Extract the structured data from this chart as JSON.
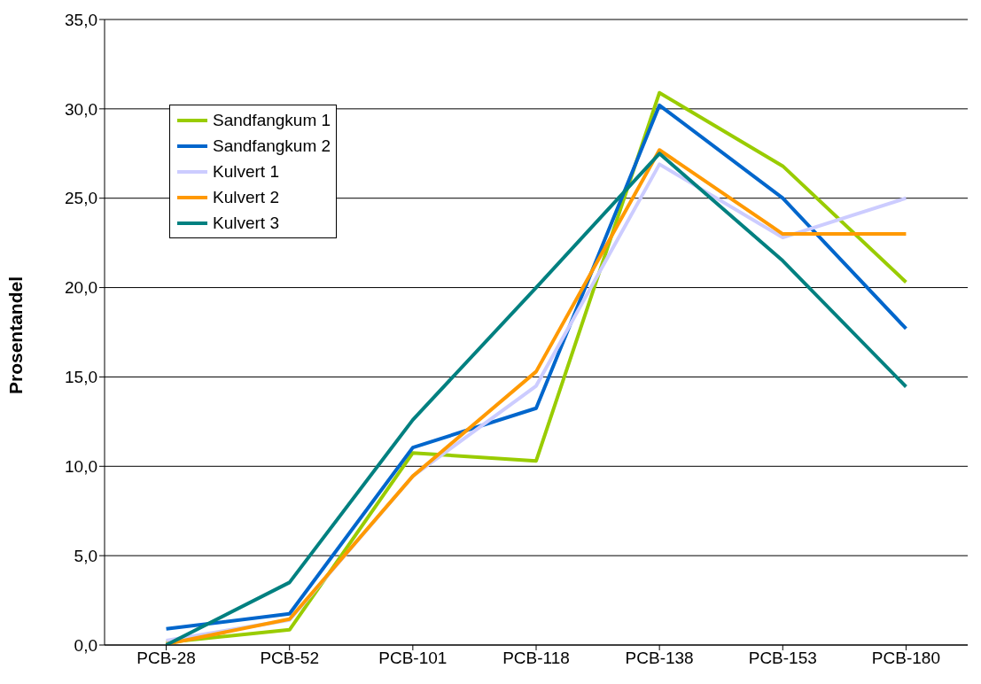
{
  "chart_data": {
    "type": "line",
    "ylabel": "Prosentandel",
    "categories": [
      "PCB-28",
      "PCB-52",
      "PCB-101",
      "PCB-118",
      "PCB-138",
      "PCB-153",
      "PCB-180"
    ],
    "series": [
      {
        "name": "Sandfangkum 1",
        "color": "#99cc00",
        "values": [
          0.15,
          0.85,
          10.75,
          10.3,
          30.9,
          26.8,
          20.3
        ]
      },
      {
        "name": "Sandfangkum 2",
        "color": "#0066cc",
        "values": [
          0.9,
          1.75,
          11.05,
          13.25,
          30.2,
          25.0,
          17.7
        ]
      },
      {
        "name": "Kulvert 1",
        "color": "#ccccff",
        "values": [
          0.25,
          1.4,
          9.45,
          14.5,
          26.9,
          22.8,
          25.0
        ]
      },
      {
        "name": "Kulvert 2",
        "color": "#ff9900",
        "values": [
          0.05,
          1.45,
          9.45,
          15.3,
          27.7,
          23.0,
          23.0
        ]
      },
      {
        "name": "Kulvert 3",
        "color": "#008080",
        "values": [
          0.0,
          3.5,
          12.6,
          20.0,
          27.5,
          21.5,
          14.45
        ]
      }
    ],
    "ylim": [
      0,
      35
    ],
    "yticks": [
      {
        "value": 0,
        "label": "0,0"
      },
      {
        "value": 5,
        "label": "5,0"
      },
      {
        "value": 10,
        "label": "10,0"
      },
      {
        "value": 15,
        "label": "15,0"
      },
      {
        "value": 20,
        "label": "20,0"
      },
      {
        "value": 25,
        "label": "25,0"
      },
      {
        "value": 30,
        "label": "30,0"
      },
      {
        "value": 35,
        "label": "35,0"
      }
    ],
    "grid": "y",
    "legend": "top left",
    "marker": "none",
    "line_style": "solid"
  }
}
